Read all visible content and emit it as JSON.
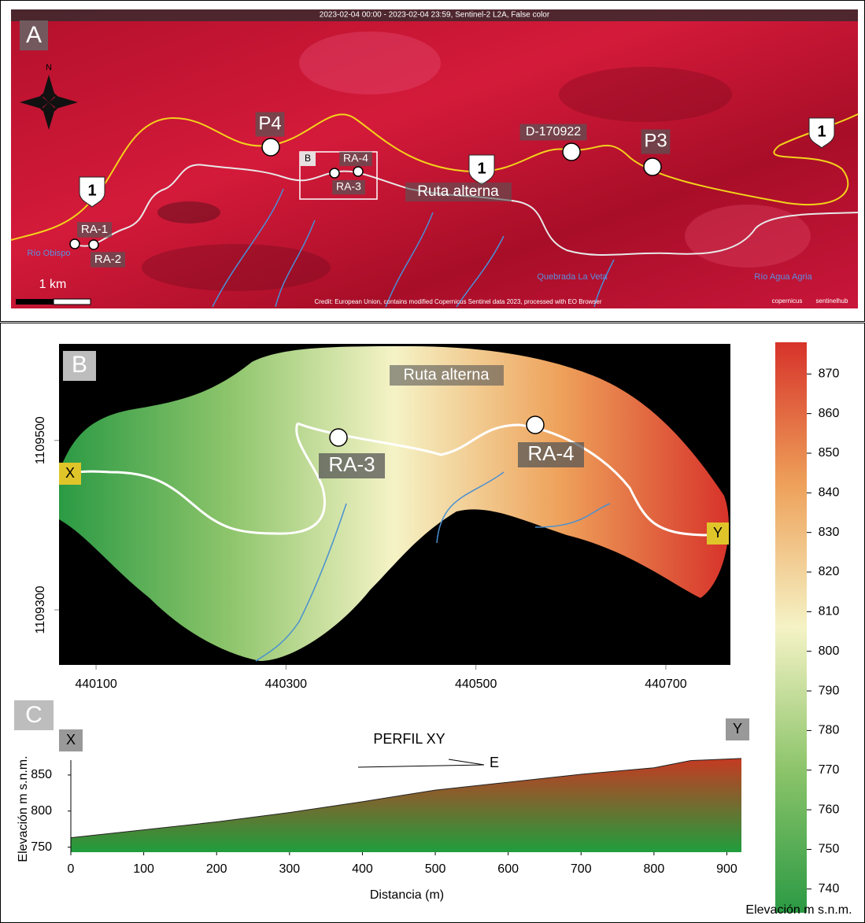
{
  "panel_a": {
    "label": "A",
    "header": "2023-02-04 00:00 - 2023-02-04 23:59, Sentinel-2 L2A, False color",
    "credit": "Credit: European Union, contains modified Copernicus Sentinel data 2023, processed with EO Browser",
    "north": "N",
    "scale_bar": "1 km",
    "logos": [
      "copernicus",
      "sentinelhub"
    ],
    "inset": "B",
    "highway_shields": [
      "1",
      "1",
      "1"
    ],
    "points": [
      "P4",
      "D-170922",
      "P3",
      "RA-1",
      "RA-2",
      "RA-3",
      "RA-4"
    ],
    "route": "Ruta alterna",
    "rivers": [
      "Río Obispo",
      "Quebrada La Veta",
      "Río Agua Agria"
    ]
  },
  "panel_b": {
    "label": "B",
    "route": "Ruta alterna",
    "points": [
      "RA-3",
      "RA-4"
    ],
    "ends": [
      "X",
      "Y"
    ],
    "xlim": [
      440061,
      440768
    ],
    "xticks": [
      440100,
      440300,
      440500,
      440700
    ],
    "ylim": [
      1109235,
      1109614
    ],
    "yticks": [
      1109500,
      1109300
    ],
    "colorbar": {
      "label": "Elevación m s.n.m.",
      "lim": [
        734,
        878
      ],
      "ticks": [
        740,
        750,
        760,
        770,
        780,
        790,
        800,
        810,
        820,
        830,
        840,
        850,
        860,
        870
      ],
      "colors": [
        "#2b9a44",
        "#8cc46a",
        "#f5f3c6",
        "#eea15a",
        "#d7332a"
      ]
    }
  },
  "chart_data": {
    "type": "area",
    "label": "C",
    "title": "PERFIL XY",
    "direction": "E",
    "ends": [
      "X",
      "Y"
    ],
    "x_label": "Distancia (m)",
    "y_label": "Elevación m s.n.m.",
    "x": [
      0,
      100,
      200,
      300,
      400,
      500,
      600,
      700,
      800,
      850,
      920
    ],
    "values": [
      763,
      774,
      785,
      798,
      813,
      829,
      840,
      851,
      860,
      870,
      873
    ],
    "xlim": [
      0,
      920
    ],
    "ylim": [
      743,
      875
    ],
    "xticks": [
      0,
      100,
      200,
      300,
      400,
      500,
      600,
      700,
      800,
      900
    ],
    "yticks": [
      750,
      800,
      850
    ],
    "colors": [
      "#1f9e3d",
      "#c53a22"
    ]
  }
}
